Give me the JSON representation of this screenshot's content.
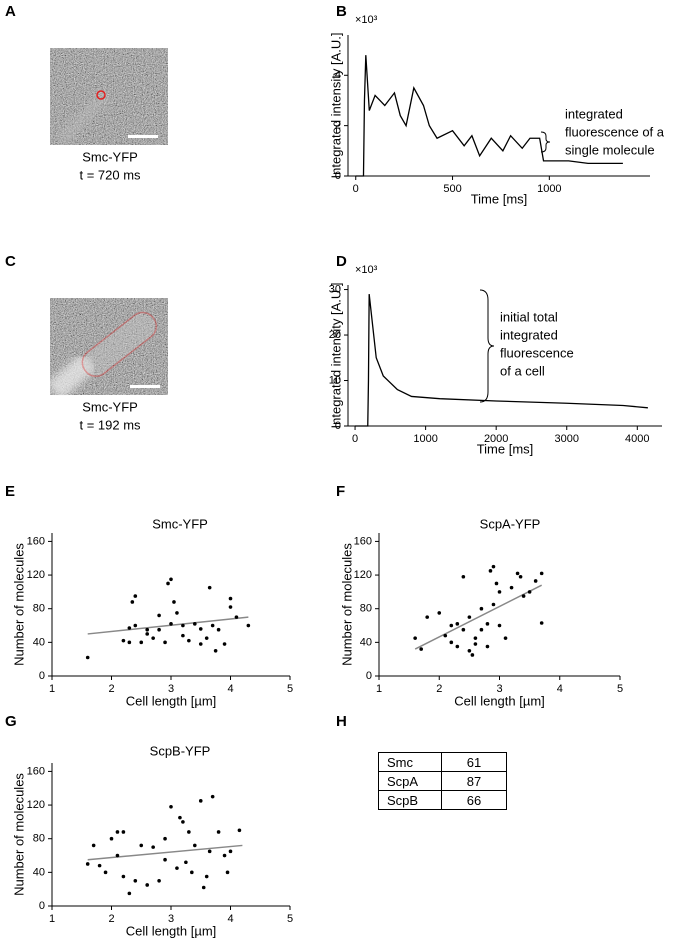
{
  "panel_labels": [
    "A",
    "B",
    "C",
    "D",
    "E",
    "F",
    "G",
    "H"
  ],
  "images": [
    {
      "caption": "Smc-YFP",
      "time": "t = 720 ms"
    },
    {
      "caption": "Smc-YFP",
      "time": "t = 192 ms"
    }
  ],
  "chart_data": [
    {
      "type": "line",
      "y_multiplier": "×10³",
      "xlabel": "Time [ms]",
      "ylabel": "Integrated intensity [A.U.]",
      "annotation": [
        "integrated",
        "fluorescence of a",
        "single molecule"
      ],
      "x": [
        0,
        40,
        45,
        52,
        70,
        100,
        150,
        200,
        230,
        260,
        300,
        350,
        380,
        420,
        500,
        560,
        600,
        640,
        700,
        760,
        800,
        860,
        900,
        950,
        970,
        1100,
        1200,
        1380
      ],
      "values": [
        0,
        0,
        3.0,
        4.8,
        2.6,
        3.2,
        2.8,
        3.3,
        2.4,
        2.0,
        3.5,
        2.8,
        2.0,
        1.5,
        1.8,
        1.2,
        1.6,
        0.8,
        1.5,
        1.0,
        1.6,
        1.1,
        1.5,
        1.5,
        0.6,
        0.6,
        0.5,
        0.5
      ],
      "color": "#000000",
      "xlim": [
        -40,
        1520
      ],
      "xticks": [
        0,
        500,
        1000
      ],
      "ylim": [
        0,
        5.6
      ],
      "yticks": [
        0,
        2,
        4
      ]
    },
    {
      "type": "line",
      "y_multiplier": "×10³",
      "xlabel": "Time [ms]",
      "ylabel": "Integrated intensity [A.U.]",
      "annotation": [
        "initial total",
        "integrated",
        "fluorescence",
        "of a cell"
      ],
      "x": [
        0,
        180,
        190,
        200,
        250,
        300,
        400,
        600,
        800,
        1200,
        2000,
        3000,
        3800,
        4150
      ],
      "values": [
        0,
        0,
        10,
        29,
        22,
        15,
        11,
        8,
        6.5,
        6,
        5.5,
        5,
        4.5,
        4
      ],
      "color": "#000000",
      "xlim": [
        -100,
        4350
      ],
      "xticks": [
        0,
        1000,
        2000,
        3000,
        4000
      ],
      "ylim": [
        0,
        31
      ],
      "yticks": [
        0,
        10,
        20,
        30
      ]
    },
    {
      "type": "scatter",
      "title": "Smc-YFP",
      "xlabel": "Cell length [µm]",
      "ylabel": "Number of molecules",
      "x": [
        1.6,
        2.2,
        2.3,
        2.35,
        2.4,
        2.4,
        2.5,
        2.6,
        2.7,
        2.8,
        2.8,
        2.9,
        2.95,
        3.0,
        3.0,
        3.05,
        3.1,
        3.2,
        3.2,
        3.3,
        3.4,
        3.5,
        3.6,
        3.65,
        3.7,
        3.8,
        3.9,
        4.0,
        4.0,
        4.1,
        4.3,
        2.3,
        2.6,
        3.5,
        3.75
      ],
      "y": [
        22,
        42,
        57,
        88,
        95,
        60,
        40,
        50,
        45,
        72,
        55,
        40,
        110,
        115,
        62,
        88,
        75,
        48,
        60,
        42,
        62,
        38,
        45,
        105,
        60,
        55,
        38,
        92,
        82,
        70,
        60,
        40,
        55,
        56,
        30
      ],
      "fit": {
        "x": [
          1.6,
          4.3
        ],
        "y": [
          50,
          70
        ]
      },
      "color": "#000000",
      "fit_color": "#888888",
      "xlim": [
        1,
        5
      ],
      "xticks": [
        1,
        2,
        3,
        4,
        5
      ],
      "ylim": [
        0,
        170
      ],
      "yticks": [
        0,
        40,
        80,
        120,
        160
      ]
    },
    {
      "type": "scatter",
      "title": "ScpA-YFP",
      "xlabel": "Cell length [µm]",
      "ylabel": "Number of molecules",
      "x": [
        1.6,
        1.7,
        1.8,
        2.0,
        2.1,
        2.2,
        2.3,
        2.3,
        2.4,
        2.4,
        2.5,
        2.5,
        2.6,
        2.6,
        2.7,
        2.7,
        2.8,
        2.8,
        2.85,
        2.9,
        2.9,
        2.95,
        3.0,
        3.0,
        3.1,
        3.2,
        3.3,
        3.35,
        3.4,
        3.5,
        3.6,
        3.7,
        3.7,
        2.2,
        2.55
      ],
      "y": [
        45,
        32,
        70,
        75,
        48,
        40,
        62,
        35,
        118,
        55,
        70,
        30,
        45,
        38,
        80,
        55,
        62,
        35,
        125,
        130,
        85,
        110,
        60,
        100,
        45,
        105,
        122,
        118,
        95,
        100,
        113,
        63,
        122,
        60,
        25
      ],
      "fit": {
        "x": [
          1.6,
          3.7
        ],
        "y": [
          32,
          108
        ]
      },
      "color": "#000000",
      "fit_color": "#888888",
      "xlim": [
        1,
        5
      ],
      "xticks": [
        1,
        2,
        3,
        4,
        5
      ],
      "ylim": [
        0,
        170
      ],
      "yticks": [
        0,
        40,
        80,
        120,
        160
      ]
    },
    {
      "type": "scatter",
      "title": "ScpB-YFP",
      "xlabel": "Cell length [µm]",
      "ylabel": "Number of molecules",
      "x": [
        1.6,
        1.7,
        1.8,
        1.9,
        2.0,
        2.1,
        2.1,
        2.2,
        2.3,
        2.4,
        2.5,
        2.6,
        2.7,
        2.8,
        2.9,
        2.9,
        3.0,
        3.1,
        3.15,
        3.2,
        3.3,
        3.35,
        3.4,
        3.5,
        3.55,
        3.6,
        3.65,
        3.7,
        3.8,
        3.9,
        3.95,
        4.0,
        4.15,
        2.2,
        3.25
      ],
      "y": [
        50,
        72,
        48,
        40,
        80,
        88,
        60,
        35,
        15,
        30,
        72,
        25,
        70,
        30,
        80,
        55,
        118,
        45,
        105,
        100,
        88,
        40,
        72,
        125,
        22,
        35,
        65,
        130,
        88,
        60,
        40,
        65,
        90,
        88,
        52
      ],
      "fit": {
        "x": [
          1.6,
          4.2
        ],
        "y": [
          55,
          72
        ]
      },
      "color": "#000000",
      "fit_color": "#888888",
      "xlim": [
        1,
        5
      ],
      "xticks": [
        1,
        2,
        3,
        4,
        5
      ],
      "ylim": [
        0,
        170
      ],
      "yticks": [
        0,
        40,
        80,
        120,
        160
      ]
    }
  ],
  "table": {
    "rows": [
      [
        "Smc",
        61
      ],
      [
        "ScpA",
        87
      ],
      [
        "ScpB",
        66
      ]
    ]
  }
}
